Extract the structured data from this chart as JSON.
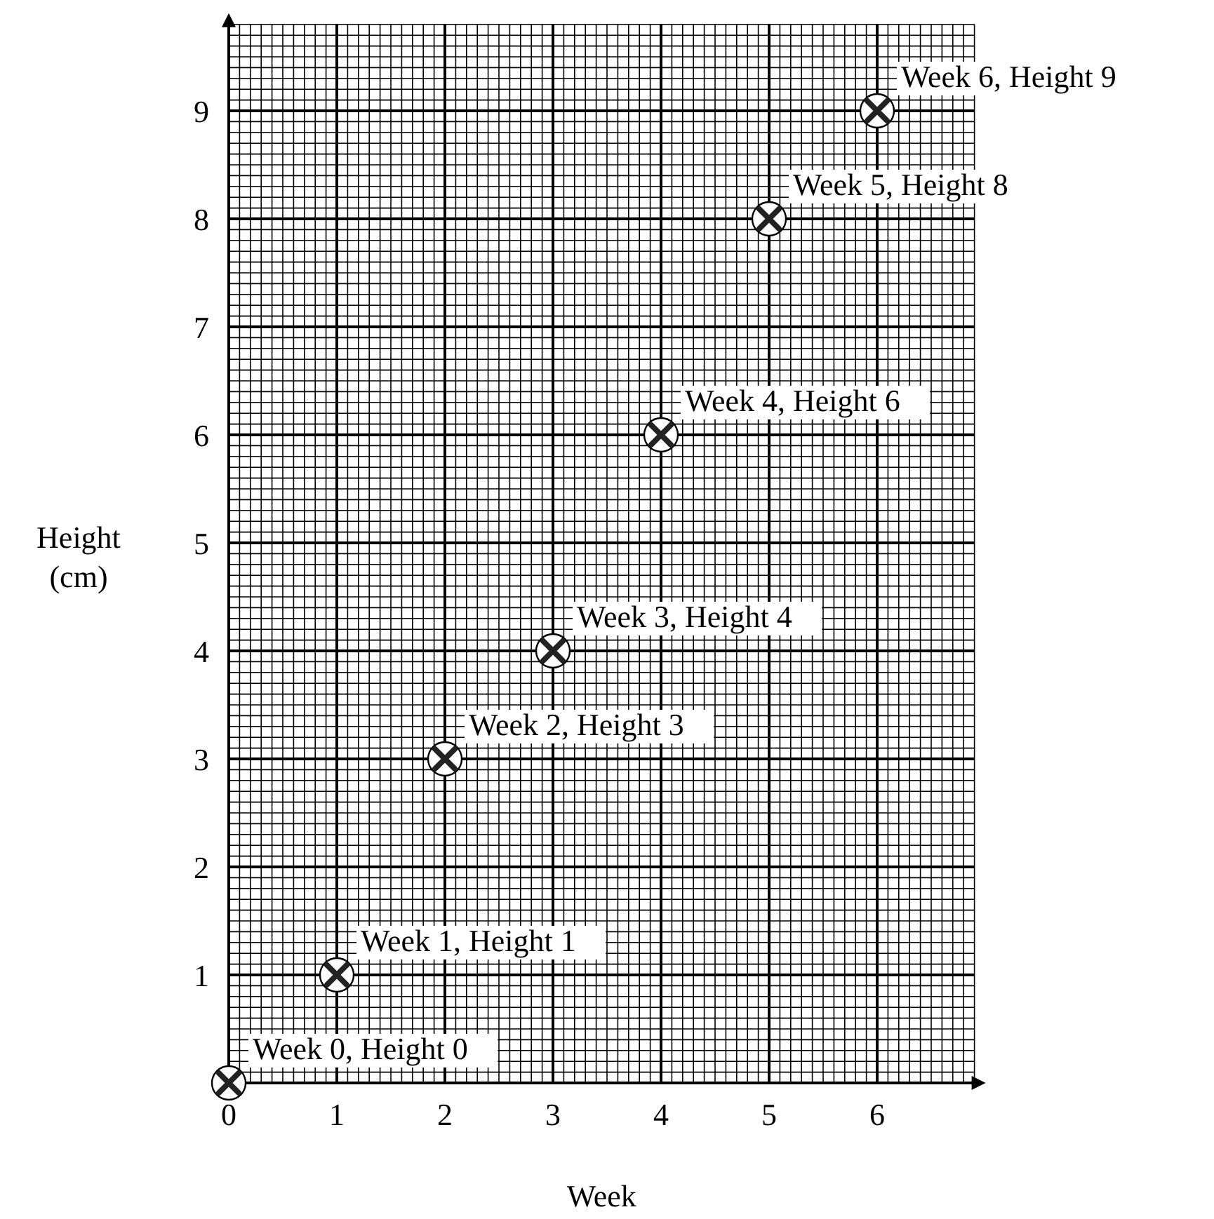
{
  "chart_data": {
    "type": "scatter",
    "xlabel": "Week",
    "ylabel": "Height (cm)",
    "x": [
      0,
      1,
      2,
      3,
      4,
      5,
      6
    ],
    "values": [
      0,
      1,
      3,
      4,
      6,
      8,
      9
    ],
    "color": "#222222",
    "marker": "cross",
    "grid": true,
    "xlim": [
      0,
      6.9
    ],
    "ylim": [
      0,
      9.8
    ],
    "xticks": [
      0,
      1,
      2,
      3,
      4,
      5,
      6
    ],
    "yticks": [
      1,
      2,
      3,
      4,
      5,
      6,
      7,
      8,
      9
    ],
    "annotations": [
      {
        "text": "Week 0, Height 0",
        "x": 0,
        "y": 0
      },
      {
        "text": "Week 1, Height 1",
        "x": 1,
        "y": 1
      },
      {
        "text": "Week 2, Height 3",
        "x": 2,
        "y": 3
      },
      {
        "text": "Week 3, Height 4",
        "x": 3,
        "y": 4
      },
      {
        "text": "Week 4, Height 6",
        "x": 4,
        "y": 6
      },
      {
        "text": "Week 5, Height 8",
        "x": 5,
        "y": 8
      },
      {
        "text": "Week 6, Height 9",
        "x": 6,
        "y": 9
      }
    ]
  }
}
